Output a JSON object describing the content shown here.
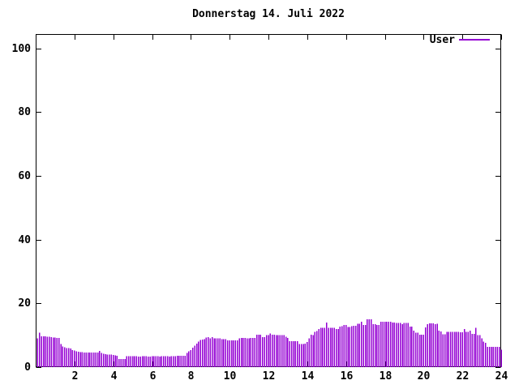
{
  "title": "Donnerstag 14. Juli 2022",
  "legend": {
    "label": "User",
    "position": "top-right"
  },
  "colors": {
    "bars": "#9400d3",
    "axis": "#000000",
    "text": "#000000",
    "background": "#ffffff"
  },
  "chart_data": {
    "type": "bar",
    "title": "Donnerstag 14. Juli 2022",
    "xlabel": "",
    "ylabel": "",
    "xlim": [
      0,
      24
    ],
    "ylim": [
      0,
      104.5
    ],
    "xticks": [
      2,
      4,
      6,
      8,
      10,
      12,
      14,
      16,
      18,
      20,
      22,
      24
    ],
    "yticks": [
      0,
      20,
      40,
      60,
      80,
      100
    ],
    "grid": false,
    "legend_position": "top-right",
    "x_unit": "hour_of_day",
    "series": [
      {
        "name": "User",
        "color": "#9400d3",
        "x_start": 0.1,
        "x_step": 0.1,
        "values": [
          9.0,
          10.8,
          9.7,
          9.6,
          9.6,
          9.5,
          9.5,
          9.4,
          9.3,
          9.3,
          9.2,
          9.2,
          7.2,
          6.5,
          6.2,
          6.0,
          6.0,
          5.9,
          5.3,
          5.2,
          5.0,
          4.8,
          4.7,
          4.7,
          4.6,
          4.6,
          4.6,
          4.6,
          4.6,
          4.6,
          4.6,
          4.6,
          5.1,
          4.4,
          4.2,
          4.1,
          4.0,
          4.0,
          3.9,
          3.8,
          3.7,
          3.6,
          2.6,
          2.5,
          2.5,
          2.5,
          3.4,
          3.4,
          3.4,
          3.4,
          3.4,
          3.4,
          3.3,
          3.3,
          3.4,
          3.4,
          3.4,
          3.3,
          3.3,
          3.4,
          3.4,
          3.4,
          3.4,
          3.3,
          3.4,
          3.4,
          3.4,
          3.4,
          3.3,
          3.4,
          3.4,
          3.4,
          3.5,
          3.5,
          3.5,
          3.5,
          3.6,
          4.4,
          4.9,
          5.3,
          6.1,
          6.7,
          7.4,
          8.0,
          8.5,
          8.7,
          8.8,
          9.3,
          9.4,
          9.0,
          9.4,
          9.0,
          9.0,
          9.0,
          9.0,
          8.8,
          8.8,
          8.8,
          8.4,
          8.4,
          8.4,
          8.4,
          8.4,
          8.4,
          9.0,
          9.2,
          9.2,
          9.2,
          9.0,
          9.0,
          9.1,
          9.1,
          9.1,
          10.2,
          10.2,
          10.2,
          9.4,
          9.4,
          10.1,
          10.1,
          10.6,
          10.2,
          10.2,
          10.0,
          10.0,
          10.0,
          10.0,
          10.0,
          9.5,
          9.1,
          8.2,
          8.2,
          8.2,
          8.2,
          8.2,
          7.3,
          7.3,
          7.3,
          7.4,
          7.9,
          9.0,
          10.2,
          10.0,
          11.0,
          11.3,
          11.9,
          12.3,
          12.3,
          12.3,
          14.0,
          12.3,
          12.3,
          12.3,
          12.3,
          11.9,
          11.9,
          12.7,
          12.9,
          13.2,
          13.2,
          12.6,
          12.6,
          12.9,
          13.0,
          13.0,
          13.6,
          13.6,
          14.3,
          13.2,
          13.2,
          15.0,
          15.0,
          15.0,
          13.5,
          13.5,
          13.2,
          13.2,
          14.2,
          14.2,
          14.2,
          14.2,
          14.2,
          14.2,
          14.0,
          14.0,
          13.9,
          13.9,
          13.9,
          13.5,
          13.9,
          13.9,
          13.9,
          12.7,
          12.7,
          11.4,
          10.8,
          10.8,
          10.2,
          10.2,
          10.2,
          12.5,
          13.5,
          13.7,
          13.7,
          13.7,
          13.5,
          13.6,
          11.4,
          11.2,
          10.3,
          10.3,
          11.0,
          11.1,
          11.1,
          11.1,
          11.1,
          11.1,
          11.1,
          10.9,
          10.9,
          12.0,
          11.0,
          11.0,
          11.4,
          10.4,
          10.4,
          12.3,
          10.0,
          10.0,
          9.0,
          8.0,
          7.6,
          6.4,
          6.3,
          6.3,
          6.3,
          6.3,
          6.3,
          6.3,
          5.5
        ]
      }
    ]
  }
}
